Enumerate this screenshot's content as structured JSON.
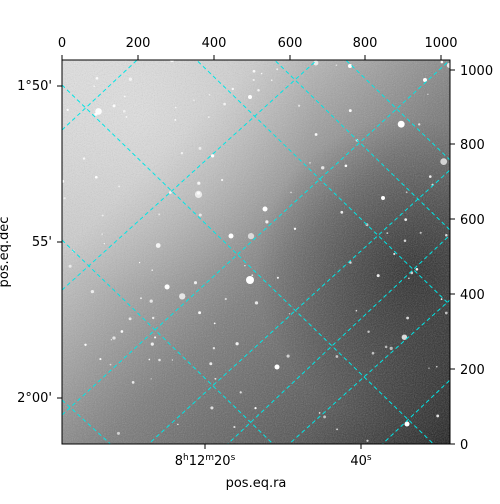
{
  "figure": {
    "x_axis_label": "pos.eq.ra",
    "y_axis_label": "pos.eq.dec",
    "pixel_x_ticks": [
      "0",
      "200",
      "400",
      "600",
      "800",
      "1000"
    ],
    "pixel_y_ticks": [
      "0",
      "200",
      "400",
      "600",
      "800",
      "1000"
    ],
    "ra_tick_labels": [
      {
        "main": "8",
        "h": "h",
        "min": "12",
        "m": "m",
        "sec": "20",
        "s": "s"
      },
      {
        "main": "",
        "h": "",
        "min": "",
        "m": "",
        "sec": "40",
        "s": "s"
      }
    ],
    "dec_tick_labels": [
      "1°50'",
      "55'",
      "2°00'"
    ],
    "grid_color": "#00e5e5",
    "image_colormap": "grayscale"
  }
}
